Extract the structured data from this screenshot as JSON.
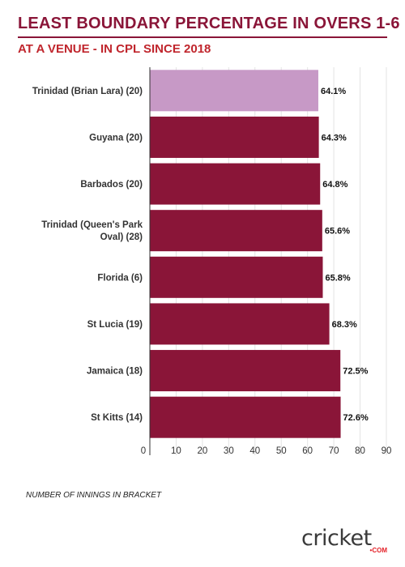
{
  "title": "LEAST BOUNDARY PERCENTAGE IN OVERS 1-6",
  "subtitle": "AT A VENUE - IN CPL SINCE 2018",
  "footnote": "NUMBER OF INNINGS IN BRACKET",
  "logo": {
    "text_before": "cr",
    "text_dot": "i",
    "text_after": "cket",
    "sub": "•COM"
  },
  "colors": {
    "title": "#8a1538",
    "subtitle": "#c0262d",
    "bar": "#8a1538",
    "highlight": "#c799c6"
  },
  "chart_data": {
    "type": "bar",
    "orientation": "horizontal",
    "categories": [
      "Trinidad (Brian Lara) (20)",
      "Guyana (20)",
      "Barbados (20)",
      "Trinidad (Queen's Park Oval) (28)",
      "Florida (6)",
      "St Lucia (19)",
      "Jamaica (18)",
      "St Kitts (14)"
    ],
    "category_lines": [
      [
        "Trinidad (Brian Lara) (20)"
      ],
      [
        "Guyana (20)"
      ],
      [
        "Barbados (20)"
      ],
      [
        "Trinidad (Queen's Park",
        "Oval) (28)"
      ],
      [
        "Florida (6)"
      ],
      [
        "St Lucia (19)"
      ],
      [
        "Jamaica (18)"
      ],
      [
        "St Kitts (14)"
      ]
    ],
    "values": [
      64.1,
      64.3,
      64.8,
      65.6,
      65.8,
      68.3,
      72.5,
      72.6
    ],
    "value_labels": [
      "64.1%",
      "64.3%",
      "64.8%",
      "65.6%",
      "65.8%",
      "68.3%",
      "72.5%",
      "72.6%"
    ],
    "highlight_index": 0,
    "xlim": [
      0,
      90
    ],
    "xticks": [
      0,
      10,
      20,
      30,
      40,
      50,
      60,
      70,
      80,
      90
    ],
    "grid": true
  }
}
